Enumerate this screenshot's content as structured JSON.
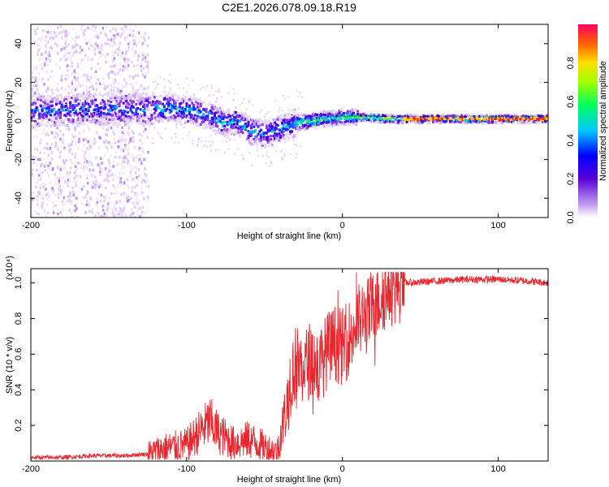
{
  "title": "C2E1.2026.078.09.18.R19",
  "chart_data": [
    {
      "type": "heatmap",
      "name": "spectrogram",
      "xlabel": "Height of straight line (km)",
      "ylabel": "Frequency (Hz)",
      "xlim": [
        -200,
        132
      ],
      "ylim": [
        -50,
        50
      ],
      "xticks": [
        -200,
        -100,
        0,
        100
      ],
      "yticks": [
        -40,
        -20,
        0,
        20,
        40
      ],
      "colorbar": {
        "label": "Normalized spectral amplitude",
        "range": [
          0,
          1
        ],
        "ticks": [
          "0.0",
          "0.2",
          "0.4",
          "0.6",
          "0.8"
        ]
      },
      "ridge": {
        "x": [
          -200,
          -160,
          -130,
          -110,
          -90,
          -75,
          -68,
          -60,
          -50,
          -40,
          -30,
          -20,
          -10,
          0,
          10,
          30,
          60,
          100,
          132
        ],
        "center_hz": [
          5,
          6,
          6,
          7,
          4,
          -1,
          0,
          -5,
          -7,
          -4,
          -1,
          0,
          1,
          2,
          2,
          1,
          1,
          1,
          1
        ]
      }
    },
    {
      "type": "line",
      "name": "snr",
      "xlabel": "Height of straight line (km)",
      "ylabel": "SNR (10 * v/v)",
      "y_multiplier": "(x10⁴)",
      "xlim": [
        -200,
        132
      ],
      "ylim": [
        0,
        1.08
      ],
      "xticks": [
        -200,
        -100,
        0,
        100
      ],
      "yticks": [
        "0.2",
        "0.4",
        "0.6",
        "0.8",
        "1.0"
      ],
      "series": [
        {
          "name": "SNR",
          "color": "#e8262d",
          "x": [
            -200,
            -180,
            -160,
            -140,
            -125,
            -115,
            -100,
            -90,
            -85,
            -80,
            -70,
            -60,
            -50,
            -42,
            -36,
            -33,
            -30,
            -25,
            -20,
            -15,
            -10,
            -5,
            0,
            5,
            10,
            15,
            20,
            25,
            30,
            40,
            60,
            80,
            100,
            120,
            132
          ],
          "y": [
            0.02,
            0.02,
            0.03,
            0.03,
            0.04,
            0.07,
            0.09,
            0.18,
            0.22,
            0.16,
            0.1,
            0.12,
            0.08,
            0.05,
            0.3,
            0.48,
            0.55,
            0.52,
            0.58,
            0.52,
            0.62,
            0.66,
            0.64,
            0.7,
            0.78,
            0.8,
            0.86,
            0.93,
            0.97,
            1.0,
            1.01,
            1.02,
            1.02,
            1.01,
            1.0
          ]
        }
      ]
    }
  ]
}
